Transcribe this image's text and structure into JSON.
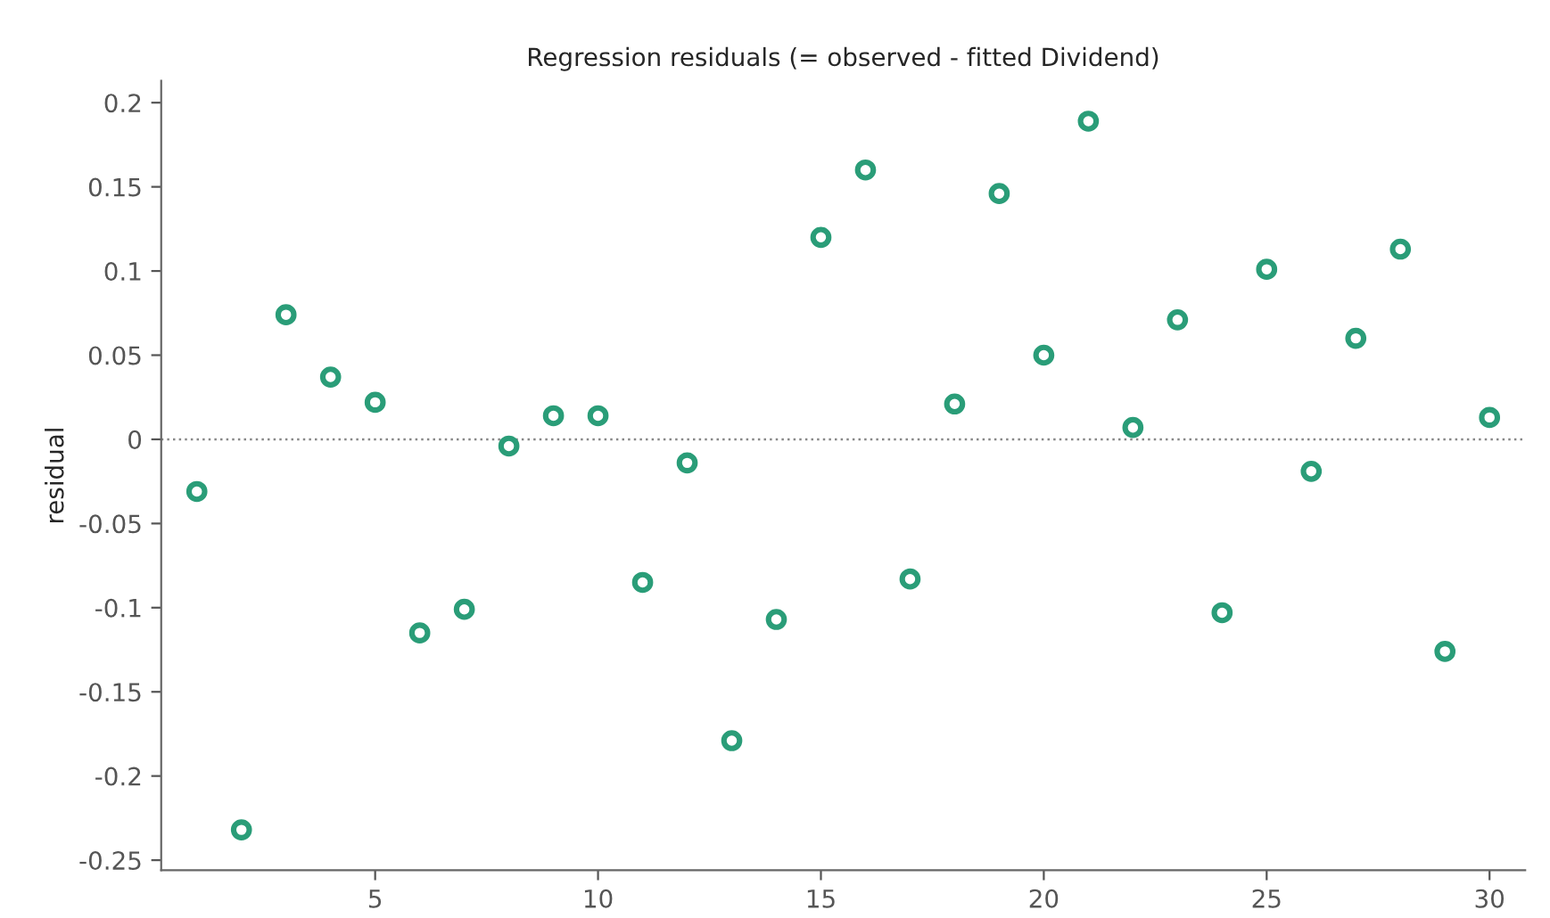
{
  "chart_data": {
    "type": "scatter",
    "title": "Regression residuals (= observed - fitted Dividend)",
    "ylabel": "residual",
    "x": [
      1,
      2,
      3,
      4,
      5,
      6,
      7,
      8,
      9,
      10,
      11,
      12,
      13,
      14,
      15,
      16,
      17,
      18,
      19,
      20,
      21,
      22,
      23,
      24,
      25,
      26,
      27,
      28,
      29,
      30
    ],
    "series": [
      {
        "color": "#2a9d78",
        "values": [
          -0.031,
          -0.232,
          0.074,
          0.037,
          0.022,
          -0.115,
          -0.101,
          -0.004,
          0.014,
          0.014,
          -0.085,
          -0.014,
          -0.179,
          -0.107,
          0.12,
          0.16,
          -0.083,
          0.021,
          0.146,
          0.05,
          0.189,
          0.007,
          0.071,
          -0.103,
          0.101,
          -0.019,
          0.06,
          0.113,
          -0.126,
          0.013
        ]
      }
    ],
    "xlim": [
      0.2,
      30.8
    ],
    "xticks": [
      5,
      10,
      15,
      20,
      25,
      30
    ],
    "ylim": [
      -0.256,
      0.213
    ],
    "yticks": [
      -0.25,
      -0.2,
      -0.15,
      -0.1,
      -0.05,
      0,
      0.05,
      0.1,
      0.15,
      0.2
    ],
    "ref_lines": [
      {
        "axis": "y",
        "value": 0,
        "color": "#888888",
        "line_style": "dotted"
      }
    ],
    "marker": "circle",
    "grid": false,
    "legend": false
  }
}
